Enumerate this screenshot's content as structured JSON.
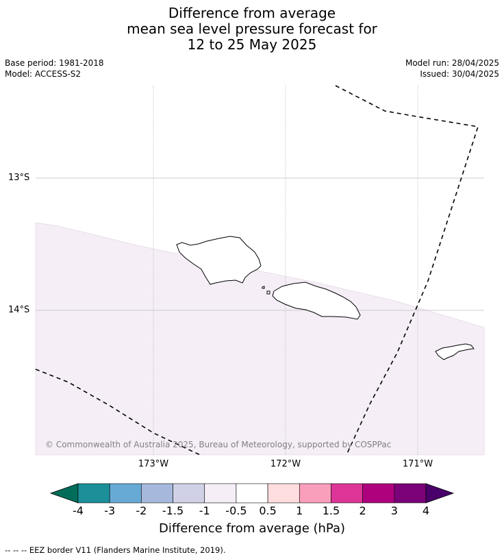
{
  "title": {
    "line1": "Difference from average",
    "line2": "mean sea level pressure forecast for",
    "line3": "12 to 25 May 2025"
  },
  "meta": {
    "base_period": "Base period: 1981-2018",
    "model": "Model: ACCESS-S2",
    "model_run": "Model run: 28/04/2025",
    "issued": "Issued: 30/04/2025"
  },
  "map": {
    "lat_labels": [
      "13°S",
      "14°S"
    ],
    "lon_labels": [
      "173°W",
      "172°W",
      "171°W"
    ],
    "copyright": "© Commonwealth of Australia 2025, Bureau of Meteorology, supported by COSPPac",
    "shade_color_lavender": "#f5eef7",
    "border_style": "dashed"
  },
  "colorbar": {
    "tick_labels": [
      "-4",
      "-3",
      "-2",
      "-1.5",
      "-1",
      "-0.5",
      "0.5",
      "1",
      "1.5",
      "2",
      "3",
      "4"
    ],
    "colors": [
      "#006d5a",
      "#1c8f99",
      "#67aad6",
      "#a6b9dc",
      "#d0d1e6",
      "#f5eef7",
      "#ffffff",
      "#fddddd",
      "#f99fbc",
      "#dd3497",
      "#ae017e",
      "#7a0177",
      "#49006a"
    ],
    "label": "Difference from average (hPa)"
  },
  "footer": {
    "legend": "--  --  -- EEZ border V11 (Flanders Marine Institute, 2019)."
  }
}
